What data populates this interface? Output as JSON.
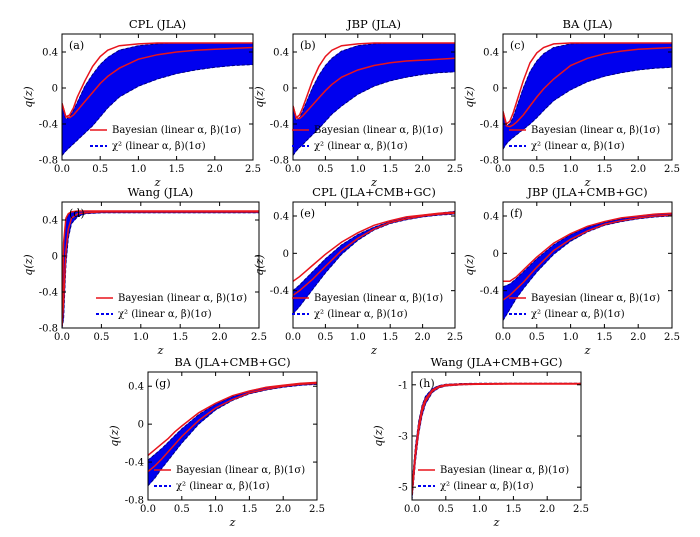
{
  "figure": {
    "legend_red": "Bayesian (linear α, β)(1σ)",
    "legend_blue": "χ² (linear α, β)(1σ)",
    "xlabel": "z",
    "ylabel": "q(z)"
  },
  "chart_data": [
    {
      "type": "area",
      "tag": "(a)",
      "title": "CPL (JLA)",
      "xlim": [
        0,
        2.5
      ],
      "ylim": [
        -0.8,
        0.6
      ],
      "yticks": [
        0.4,
        0,
        -0.4,
        -0.8
      ],
      "xticks": [
        0.0,
        0.5,
        1.0,
        1.5,
        2.0,
        2.5
      ],
      "x": [
        0.0,
        0.05,
        0.1,
        0.15,
        0.2,
        0.3,
        0.4,
        0.5,
        0.6,
        0.75,
        1.0,
        1.25,
        1.5,
        1.75,
        2.0,
        2.25,
        2.5
      ],
      "band_upper": [
        -0.2,
        -0.35,
        -0.32,
        -0.25,
        -0.16,
        0.02,
        0.15,
        0.26,
        0.34,
        0.42,
        0.47,
        0.49,
        0.5,
        0.5,
        0.5,
        0.5,
        0.5
      ],
      "band_lower": [
        -0.75,
        -0.7,
        -0.66,
        -0.62,
        -0.58,
        -0.5,
        -0.42,
        -0.32,
        -0.22,
        -0.1,
        0.02,
        0.1,
        0.16,
        0.2,
        0.23,
        0.25,
        0.26
      ],
      "red_upper": [
        -0.17,
        -0.32,
        -0.3,
        -0.22,
        -0.1,
        0.08,
        0.24,
        0.35,
        0.42,
        0.47,
        0.49,
        0.5,
        0.5,
        0.5,
        0.5,
        0.5,
        0.5
      ],
      "red_lower": [
        -0.17,
        -0.32,
        -0.33,
        -0.3,
        -0.25,
        -0.15,
        -0.05,
        0.05,
        0.13,
        0.22,
        0.32,
        0.37,
        0.4,
        0.42,
        0.43,
        0.44,
        0.45
      ]
    },
    {
      "type": "area",
      "tag": "(b)",
      "title": "JBP (JLA)",
      "xlim": [
        0,
        2.5
      ],
      "ylim": [
        -0.8,
        0.6
      ],
      "yticks": [
        0.4,
        0,
        -0.4,
        -0.8
      ],
      "xticks": [
        0.0,
        0.5,
        1.0,
        1.5,
        2.0,
        2.5
      ],
      "x": [
        0.0,
        0.05,
        0.1,
        0.15,
        0.2,
        0.3,
        0.4,
        0.5,
        0.6,
        0.75,
        1.0,
        1.25,
        1.5,
        1.75,
        2.0,
        2.25,
        2.5
      ],
      "band_upper": [
        -0.22,
        -0.36,
        -0.33,
        -0.26,
        -0.17,
        0.0,
        0.14,
        0.25,
        0.33,
        0.41,
        0.47,
        0.49,
        0.5,
        0.5,
        0.5,
        0.5,
        0.5
      ],
      "band_lower": [
        -0.75,
        -0.7,
        -0.66,
        -0.63,
        -0.59,
        -0.52,
        -0.45,
        -0.37,
        -0.29,
        -0.2,
        -0.07,
        0.02,
        0.08,
        0.12,
        0.15,
        0.17,
        0.18
      ],
      "red_upper": [
        -0.2,
        -0.33,
        -0.3,
        -0.22,
        -0.12,
        0.08,
        0.24,
        0.35,
        0.42,
        0.47,
        0.49,
        0.5,
        0.5,
        0.5,
        0.5,
        0.5,
        0.5
      ],
      "red_lower": [
        -0.2,
        -0.33,
        -0.34,
        -0.31,
        -0.27,
        -0.19,
        -0.11,
        -0.03,
        0.04,
        0.12,
        0.2,
        0.25,
        0.28,
        0.3,
        0.31,
        0.32,
        0.33
      ]
    },
    {
      "type": "area",
      "tag": "(c)",
      "title": "BA (JLA)",
      "xlim": [
        0,
        2.5
      ],
      "ylim": [
        -0.8,
        0.6
      ],
      "yticks": [
        0.4,
        0,
        -0.4,
        -0.8
      ],
      "xticks": [
        0.0,
        0.5,
        1.0,
        1.5,
        2.0,
        2.5
      ],
      "x": [
        0.0,
        0.05,
        0.1,
        0.15,
        0.2,
        0.3,
        0.4,
        0.5,
        0.6,
        0.75,
        1.0,
        1.25,
        1.5,
        1.75,
        2.0,
        2.25,
        2.5
      ],
      "band_upper": [
        -0.28,
        -0.42,
        -0.4,
        -0.33,
        -0.22,
        0.0,
        0.18,
        0.3,
        0.38,
        0.45,
        0.49,
        0.5,
        0.5,
        0.5,
        0.5,
        0.5,
        0.5
      ],
      "band_lower": [
        -0.68,
        -0.62,
        -0.58,
        -0.55,
        -0.52,
        -0.46,
        -0.4,
        -0.33,
        -0.25,
        -0.14,
        -0.02,
        0.07,
        0.13,
        0.17,
        0.2,
        0.22,
        0.23
      ],
      "red_upper": [
        -0.26,
        -0.4,
        -0.37,
        -0.28,
        -0.16,
        0.08,
        0.28,
        0.39,
        0.45,
        0.49,
        0.5,
        0.5,
        0.5,
        0.5,
        0.5,
        0.5,
        0.5
      ],
      "red_lower": [
        -0.26,
        -0.42,
        -0.43,
        -0.41,
        -0.38,
        -0.3,
        -0.2,
        -0.1,
        -0.01,
        0.1,
        0.25,
        0.33,
        0.38,
        0.41,
        0.43,
        0.44,
        0.45
      ]
    },
    {
      "type": "area",
      "tag": "(d)",
      "title": "Wang (JLA)",
      "xlim": [
        0,
        2.5
      ],
      "ylim": [
        -0.8,
        0.6
      ],
      "yticks": [
        0.4,
        0,
        -0.4,
        -0.8
      ],
      "xticks": [
        0.0,
        0.5,
        1.0,
        1.5,
        2.0,
        2.5
      ],
      "x": [
        0.0,
        0.02,
        0.05,
        0.08,
        0.12,
        0.2,
        0.3,
        0.5,
        0.75,
        1.0,
        1.5,
        2.0,
        2.5
      ],
      "band_upper": [
        -0.8,
        0.1,
        0.4,
        0.46,
        0.49,
        0.5,
        0.5,
        0.5,
        0.5,
        0.5,
        0.5,
        0.5,
        0.5
      ],
      "band_lower": [
        -0.8,
        -0.7,
        -0.1,
        0.2,
        0.36,
        0.44,
        0.47,
        0.48,
        0.48,
        0.48,
        0.48,
        0.48,
        0.48
      ],
      "red_upper": [
        -0.75,
        0.15,
        0.42,
        0.47,
        0.49,
        0.5,
        0.5,
        0.5,
        0.5,
        0.5,
        0.5,
        0.5,
        0.5
      ],
      "red_lower": [
        -0.78,
        -0.5,
        0.05,
        0.3,
        0.42,
        0.47,
        0.48,
        0.49,
        0.49,
        0.49,
        0.49,
        0.49,
        0.49
      ]
    },
    {
      "type": "area",
      "tag": "(e)",
      "title": "CPL (JLA+CMB+GC)",
      "xlim": [
        0,
        2.5
      ],
      "ylim": [
        -0.8,
        0.55
      ],
      "yticks": [
        0.4,
        0,
        -0.4
      ],
      "xticks": [
        0.0,
        0.5,
        1.0,
        1.5,
        2.0,
        2.5
      ],
      "x": [
        0.0,
        0.1,
        0.2,
        0.3,
        0.4,
        0.5,
        0.75,
        1.0,
        1.25,
        1.5,
        1.75,
        2.0,
        2.25,
        2.5
      ],
      "band_upper": [
        -0.4,
        -0.34,
        -0.27,
        -0.2,
        -0.13,
        -0.06,
        0.09,
        0.2,
        0.28,
        0.34,
        0.38,
        0.41,
        0.43,
        0.45
      ],
      "band_lower": [
        -0.65,
        -0.57,
        -0.48,
        -0.39,
        -0.3,
        -0.21,
        -0.01,
        0.14,
        0.25,
        0.32,
        0.36,
        0.39,
        0.41,
        0.42
      ],
      "red_upper": [
        -0.3,
        -0.25,
        -0.19,
        -0.13,
        -0.07,
        -0.01,
        0.12,
        0.22,
        0.3,
        0.35,
        0.39,
        0.41,
        0.43,
        0.44
      ],
      "red_lower": [
        -0.45,
        -0.4,
        -0.34,
        -0.28,
        -0.21,
        -0.14,
        0.03,
        0.16,
        0.26,
        0.33,
        0.37,
        0.4,
        0.42,
        0.43
      ]
    },
    {
      "type": "area",
      "tag": "(f)",
      "title": "JBP (JLA+CMB+GC)",
      "xlim": [
        0,
        2.5
      ],
      "ylim": [
        -0.8,
        0.55
      ],
      "yticks": [
        0.4,
        0,
        -0.4
      ],
      "xticks": [
        0.0,
        0.5,
        1.0,
        1.5,
        2.0,
        2.5
      ],
      "x": [
        0.0,
        0.1,
        0.2,
        0.3,
        0.4,
        0.5,
        0.75,
        1.0,
        1.25,
        1.5,
        1.75,
        2.0,
        2.25,
        2.5
      ],
      "band_upper": [
        -0.36,
        -0.33,
        -0.27,
        -0.2,
        -0.13,
        -0.06,
        0.09,
        0.2,
        0.28,
        0.33,
        0.37,
        0.4,
        0.42,
        0.43
      ],
      "band_lower": [
        -0.72,
        -0.6,
        -0.48,
        -0.38,
        -0.29,
        -0.2,
        -0.01,
        0.13,
        0.23,
        0.3,
        0.34,
        0.37,
        0.39,
        0.4
      ],
      "red_upper": [
        -0.3,
        -0.3,
        -0.25,
        -0.18,
        -0.11,
        -0.04,
        0.11,
        0.21,
        0.29,
        0.34,
        0.38,
        0.4,
        0.42,
        0.43
      ],
      "red_lower": [
        -0.5,
        -0.45,
        -0.38,
        -0.31,
        -0.23,
        -0.15,
        0.03,
        0.15,
        0.24,
        0.31,
        0.35,
        0.38,
        0.4,
        0.41
      ]
    },
    {
      "type": "area",
      "tag": "(g)",
      "title": "BA (JLA+CMB+GC)",
      "xlim": [
        0,
        2.5
      ],
      "ylim": [
        -0.8,
        0.55
      ],
      "yticks": [
        0.4,
        0,
        -0.4,
        -0.8
      ],
      "xticks": [
        0.0,
        0.5,
        1.0,
        1.5,
        2.0,
        2.5
      ],
      "x": [
        0.0,
        0.1,
        0.2,
        0.3,
        0.4,
        0.5,
        0.75,
        1.0,
        1.25,
        1.5,
        1.75,
        2.0,
        2.25,
        2.5
      ],
      "band_upper": [
        -0.38,
        -0.32,
        -0.26,
        -0.19,
        -0.12,
        -0.05,
        0.1,
        0.21,
        0.29,
        0.35,
        0.39,
        0.41,
        0.43,
        0.44
      ],
      "band_lower": [
        -0.65,
        -0.57,
        -0.47,
        -0.38,
        -0.29,
        -0.2,
        0.0,
        0.15,
        0.25,
        0.32,
        0.36,
        0.39,
        0.41,
        0.42
      ],
      "red_upper": [
        -0.33,
        -0.27,
        -0.21,
        -0.15,
        -0.08,
        -0.02,
        0.12,
        0.22,
        0.3,
        0.35,
        0.39,
        0.41,
        0.43,
        0.44
      ],
      "red_lower": [
        -0.5,
        -0.44,
        -0.37,
        -0.29,
        -0.21,
        -0.13,
        0.04,
        0.17,
        0.26,
        0.33,
        0.37,
        0.4,
        0.42,
        0.43
      ]
    },
    {
      "type": "area",
      "tag": "(h)",
      "title": "Wang (JLA+CMB+GC)",
      "xlim": [
        0,
        2.5
      ],
      "ylim": [
        -5.5,
        -0.5
      ],
      "yticks": [
        -1,
        -3,
        -5
      ],
      "xticks": [
        0.0,
        0.5,
        1.0,
        1.5,
        2.0,
        2.5
      ],
      "x": [
        0.0,
        0.02,
        0.05,
        0.1,
        0.15,
        0.2,
        0.3,
        0.4,
        0.5,
        0.75,
        1.0,
        1.5,
        2.0,
        2.5
      ],
      "band_upper": [
        -5.0,
        -4.3,
        -3.4,
        -2.4,
        -1.8,
        -1.45,
        -1.15,
        -1.03,
        -0.98,
        -0.95,
        -0.94,
        -0.94,
        -0.94,
        -0.94
      ],
      "band_lower": [
        -5.5,
        -4.9,
        -4.0,
        -2.9,
        -2.2,
        -1.75,
        -1.3,
        -1.12,
        -1.05,
        -1.0,
        -0.98,
        -0.97,
        -0.97,
        -0.97
      ],
      "red_upper": [
        -5.1,
        -4.5,
        -3.6,
        -2.55,
        -1.9,
        -1.55,
        -1.2,
        -1.06,
        -1.0,
        -0.97,
        -0.96,
        -0.95,
        -0.95,
        -0.95
      ],
      "red_lower": [
        -5.3,
        -4.7,
        -3.8,
        -2.75,
        -2.05,
        -1.65,
        -1.25,
        -1.09,
        -1.03,
        -0.99,
        -0.98,
        -0.97,
        -0.97,
        -0.97
      ]
    }
  ]
}
